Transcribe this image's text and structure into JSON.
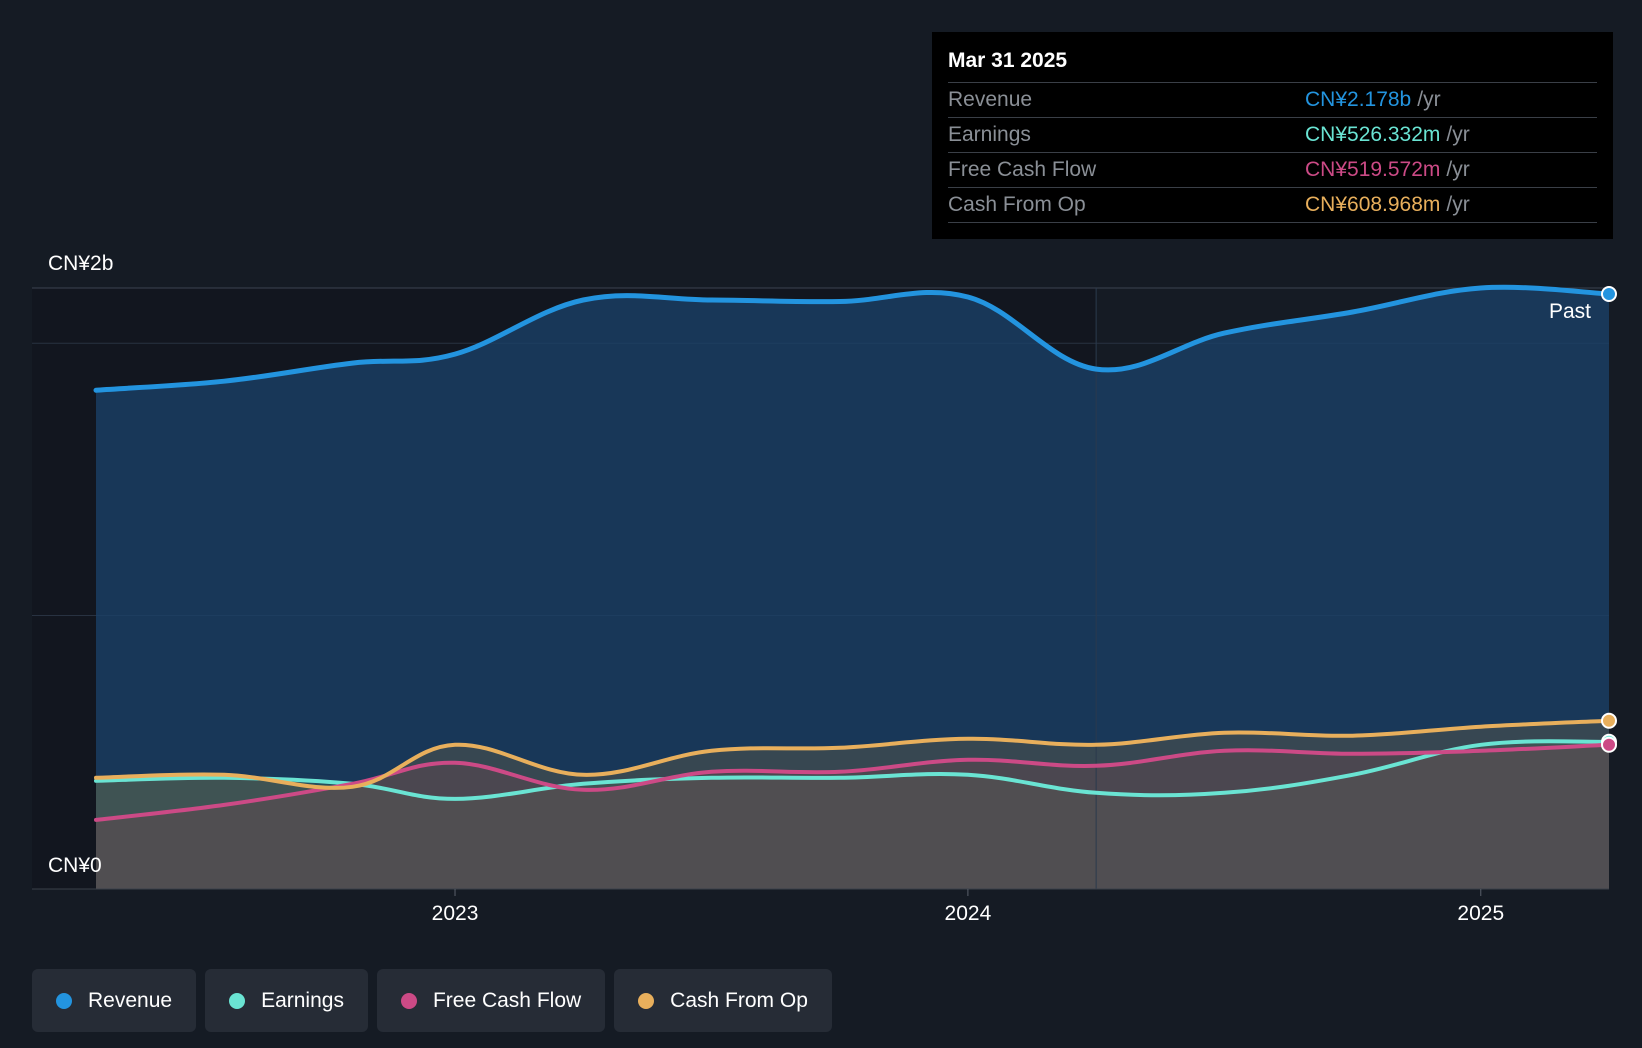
{
  "chart_data": {
    "type": "area",
    "y_axis": {
      "top_label": "CN¥2b",
      "bottom_label": "CN¥0",
      "ylim": [
        0,
        2.0
      ]
    },
    "x_axis": {
      "tick_labels": [
        "2023",
        "2024",
        "2025"
      ],
      "tick_values": [
        2023.0,
        2024.0,
        2025.0
      ],
      "xlim": [
        2022.3,
        2025.25
      ]
    },
    "region_label": "Past",
    "past_region_start": 2024.25,
    "series": [
      {
        "name": "Revenue",
        "color": "#2394df",
        "x": [
          2022.3,
          2022.55,
          2022.8,
          2023.0,
          2023.25,
          2023.5,
          2023.75,
          2024.0,
          2024.25,
          2024.5,
          2024.75,
          2025.0,
          2025.25
        ],
        "y": [
          1.66,
          1.69,
          1.75,
          1.78,
          1.96,
          1.96,
          1.955,
          1.97,
          1.73,
          1.85,
          1.92,
          2.0,
          1.98
        ]
      },
      {
        "name": "Earnings",
        "color": "#6ae4d3",
        "x": [
          2022.3,
          2022.55,
          2022.8,
          2023.0,
          2023.25,
          2023.5,
          2023.75,
          2024.0,
          2024.25,
          2024.5,
          2024.75,
          2025.0,
          2025.25
        ],
        "y": [
          0.36,
          0.37,
          0.35,
          0.3,
          0.35,
          0.37,
          0.37,
          0.38,
          0.32,
          0.32,
          0.38,
          0.48,
          0.49
        ]
      },
      {
        "name": "Free Cash Flow",
        "color": "#cc4a86",
        "x": [
          2022.3,
          2022.55,
          2022.8,
          2023.0,
          2023.25,
          2023.5,
          2023.75,
          2024.0,
          2024.25,
          2024.5,
          2024.75,
          2025.0,
          2025.25
        ],
        "y": [
          0.23,
          0.28,
          0.35,
          0.42,
          0.33,
          0.39,
          0.39,
          0.43,
          0.41,
          0.46,
          0.45,
          0.46,
          0.48
        ]
      },
      {
        "name": "Cash From Op",
        "color": "#e8af5c",
        "x": [
          2022.3,
          2022.55,
          2022.8,
          2023.0,
          2023.25,
          2023.5,
          2023.75,
          2024.0,
          2024.25,
          2024.5,
          2024.75,
          2025.0,
          2025.25
        ],
        "y": [
          0.37,
          0.38,
          0.34,
          0.48,
          0.38,
          0.46,
          0.47,
          0.5,
          0.48,
          0.52,
          0.51,
          0.54,
          0.56
        ]
      }
    ]
  },
  "tooltip": {
    "date": "Mar 31 2025",
    "rows": [
      {
        "label": "Revenue",
        "value": "CN¥2.178b",
        "unit": "/yr",
        "color": "#2394df"
      },
      {
        "label": "Earnings",
        "value": "CN¥526.332m",
        "unit": "/yr",
        "color": "#6ae4d3"
      },
      {
        "label": "Free Cash Flow",
        "value": "CN¥519.572m",
        "unit": "/yr",
        "color": "#cc4a86"
      },
      {
        "label": "Cash From Op",
        "value": "CN¥608.968m",
        "unit": "/yr",
        "color": "#e8af5c"
      }
    ]
  },
  "legend": [
    {
      "label": "Revenue",
      "color": "#2394df"
    },
    {
      "label": "Earnings",
      "color": "#6ae4d3"
    },
    {
      "label": "Free Cash Flow",
      "color": "#cc4a86"
    },
    {
      "label": "Cash From Op",
      "color": "#e8af5c"
    }
  ]
}
